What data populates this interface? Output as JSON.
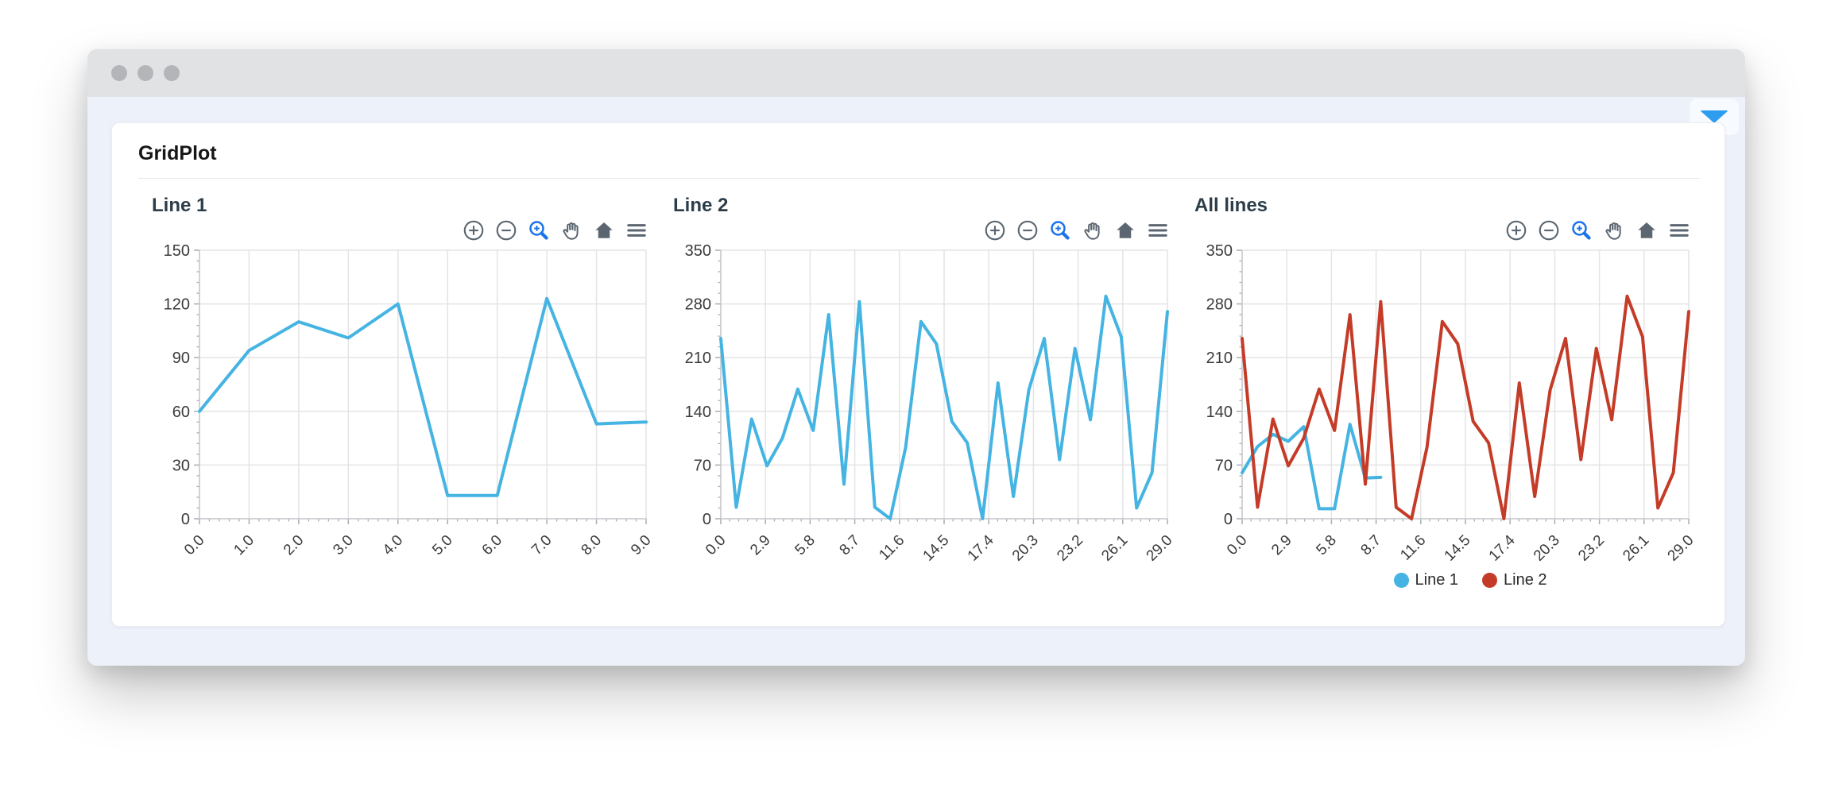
{
  "page": {
    "heading": "GridPlot"
  },
  "colors": {
    "series_blue": "#45b4e2",
    "series_red": "#c43c28",
    "caret_blue": "#2e9df0",
    "toolbar_icon": "#5b6671",
    "toolbar_active": "#1a73e8",
    "grid": "#e4e4e6",
    "axis": "#c7c9cc",
    "tick": "#a8aeb5",
    "tick_label": "#3b3b3b"
  },
  "toolbar": {
    "icons": [
      {
        "name": "zoom-in-icon",
        "active": false
      },
      {
        "name": "zoom-out-icon",
        "active": false
      },
      {
        "name": "box-zoom-icon",
        "active": true
      },
      {
        "name": "pan-icon",
        "active": false
      },
      {
        "name": "reset-icon",
        "active": false
      },
      {
        "name": "menu-icon",
        "active": false
      }
    ]
  },
  "chart_data": [
    {
      "type": "line",
      "title": "Line 1",
      "xlim": [
        0,
        9
      ],
      "ylim": [
        0,
        150
      ],
      "grid": true,
      "xticks": {
        "values": [
          0,
          1,
          2,
          3,
          4,
          5,
          6,
          7,
          8,
          9
        ],
        "labels": [
          "0.0",
          "1.0",
          "2.0",
          "3.0",
          "4.0",
          "5.0",
          "6.0",
          "7.0",
          "8.0",
          "9.0"
        ]
      },
      "yticks": {
        "values": [
          0,
          30,
          60,
          90,
          120,
          150
        ],
        "labels": [
          "0",
          "30",
          "60",
          "90",
          "120",
          "150"
        ]
      },
      "series": [
        {
          "name": "Line 1",
          "color": "#45b4e2",
          "x": [
            0,
            1,
            2,
            3,
            4,
            5,
            6,
            7,
            8,
            9
          ],
          "values": [
            60,
            94,
            110,
            101,
            120,
            13,
            13,
            123,
            53,
            54
          ]
        }
      ]
    },
    {
      "type": "line",
      "title": "Line 2",
      "xlim": [
        0,
        29
      ],
      "ylim": [
        0,
        350
      ],
      "grid": true,
      "xticks": {
        "values": [
          0,
          2.9,
          5.8,
          8.7,
          11.6,
          14.5,
          17.4,
          20.3,
          23.2,
          26.1,
          29.0
        ],
        "labels": [
          "0.0",
          "2.9",
          "5.8",
          "8.7",
          "11.6",
          "14.5",
          "17.4",
          "20.3",
          "23.2",
          "26.1",
          "29.0"
        ]
      },
      "yticks": {
        "values": [
          0,
          70,
          140,
          210,
          280,
          350
        ],
        "labels": [
          "0",
          "70",
          "140",
          "210",
          "280",
          "350"
        ]
      },
      "series": [
        {
          "name": "Line 2",
          "color": "#45b4e2",
          "x": [
            0,
            1,
            2,
            3,
            4,
            5,
            6,
            7,
            8,
            9,
            10,
            11,
            12,
            13,
            14,
            15,
            16,
            17,
            18,
            19,
            20,
            21,
            22,
            23,
            24,
            25,
            26,
            27,
            28,
            29
          ],
          "values": [
            235,
            15,
            130,
            69,
            105,
            169,
            115,
            266,
            45,
            283,
            15,
            0,
            93,
            257,
            228,
            127,
            99,
            0,
            177,
            29,
            168,
            235,
            77,
            222,
            129,
            290,
            237,
            14,
            60,
            270
          ]
        }
      ]
    },
    {
      "type": "line",
      "title": "All lines",
      "xlim": [
        0,
        29
      ],
      "ylim": [
        0,
        350
      ],
      "grid": true,
      "xticks": {
        "values": [
          0,
          2.9,
          5.8,
          8.7,
          11.6,
          14.5,
          17.4,
          20.3,
          23.2,
          26.1,
          29.0
        ],
        "labels": [
          "0.0",
          "2.9",
          "5.8",
          "8.7",
          "11.6",
          "14.5",
          "17.4",
          "20.3",
          "23.2",
          "26.1",
          "29.0"
        ]
      },
      "yticks": {
        "values": [
          0,
          70,
          140,
          210,
          280,
          350
        ],
        "labels": [
          "0",
          "70",
          "140",
          "210",
          "280",
          "350"
        ]
      },
      "series": [
        {
          "name": "Line 1",
          "color": "#45b4e2",
          "x": [
            0,
            1,
            2,
            3,
            4,
            5,
            6,
            7,
            8,
            9
          ],
          "values": [
            60,
            94,
            110,
            101,
            120,
            13,
            13,
            123,
            53,
            54
          ]
        },
        {
          "name": "Line 2",
          "color": "#c43c28",
          "x": [
            0,
            1,
            2,
            3,
            4,
            5,
            6,
            7,
            8,
            9,
            10,
            11,
            12,
            13,
            14,
            15,
            16,
            17,
            18,
            19,
            20,
            21,
            22,
            23,
            24,
            25,
            26,
            27,
            28,
            29
          ],
          "values": [
            235,
            15,
            130,
            69,
            105,
            169,
            115,
            266,
            45,
            283,
            15,
            0,
            93,
            257,
            228,
            127,
            99,
            0,
            177,
            29,
            168,
            235,
            77,
            222,
            129,
            290,
            237,
            14,
            60,
            270
          ]
        }
      ],
      "legend": {
        "position": "below",
        "items": [
          {
            "label": "Line 1",
            "color": "#45b4e2"
          },
          {
            "label": "Line 2",
            "color": "#c43c28"
          }
        ]
      }
    }
  ]
}
